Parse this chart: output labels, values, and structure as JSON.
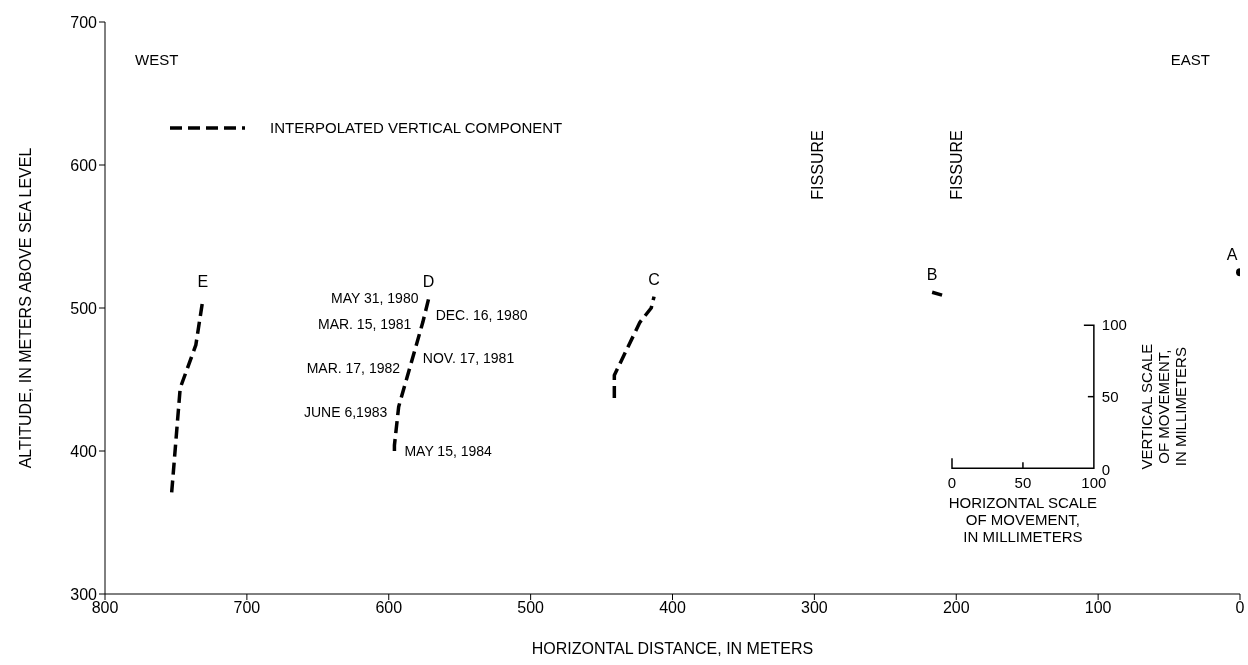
{
  "chart_data": {
    "type": "line",
    "xlabel": "HORIZONTAL DISTANCE, IN METERS",
    "ylabel": "ALTITUDE, IN METERS ABOVE SEA LEVEL",
    "legend_title": "INTERPOLATED VERTICAL COMPONENT",
    "legend": "top left",
    "line_style": "dashed",
    "marker": "none",
    "grid": false,
    "xlim": [
      800,
      0
    ],
    "xticks": [
      800,
      700,
      600,
      500,
      400,
      300,
      200,
      100,
      0
    ],
    "ylim": [
      300,
      700
    ],
    "yticks": [
      300,
      400,
      500,
      600,
      700
    ],
    "series": [
      {
        "name": "E",
        "color": "#000000",
        "x": [
          753,
          747,
          736,
          731
        ],
        "values": [
          371,
          444,
          474,
          506
        ]
      },
      {
        "name": "D",
        "color": "#000000",
        "x": [
          596,
          596,
          593,
          576,
          572
        ],
        "values": [
          400,
          404,
          431,
          490,
          506
        ]
      },
      {
        "name": "C",
        "color": "#000000",
        "x": [
          441,
          441,
          423,
          415,
          413
        ],
        "values": [
          437,
          453,
          490,
          500,
          508
        ]
      },
      {
        "name": "B",
        "color": "#000000",
        "x": [
          217,
          210
        ],
        "values": [
          511,
          509
        ]
      },
      {
        "name": "A",
        "type": "scatter",
        "marker": "circle",
        "color": "#000000",
        "x": [
          0
        ],
        "values": [
          525
        ]
      }
    ],
    "annotations": [
      "WEST",
      "EAST",
      "HORIZONTAL SCALE OF MOVEMENT, IN MILLIMETERS",
      "VERTICAL SCALE OF MOVEMENT, IN MILLIMETERS",
      "0",
      "50",
      "100",
      "0",
      "50",
      "100",
      "FISSURE",
      "FISSURE",
      {
        "text": "MAY 31, 1980",
        "x": 572,
        "y": 507
      },
      {
        "text": "DEC. 16, 1980",
        "x": 574,
        "y": 495
      },
      {
        "text": "MAR. 15, 1981",
        "x": 577,
        "y": 489
      },
      {
        "text": "NOV. 17, 1981",
        "x": 583,
        "y": 465
      },
      {
        "text": "MAR. 17, 1982",
        "x": 585,
        "y": 458
      },
      {
        "text": "MAY 15, 1984",
        "x": 596,
        "y": 400
      },
      {
        "text": "JUNE 6,1983",
        "x": 594,
        "y": 427
      }
    ]
  }
}
